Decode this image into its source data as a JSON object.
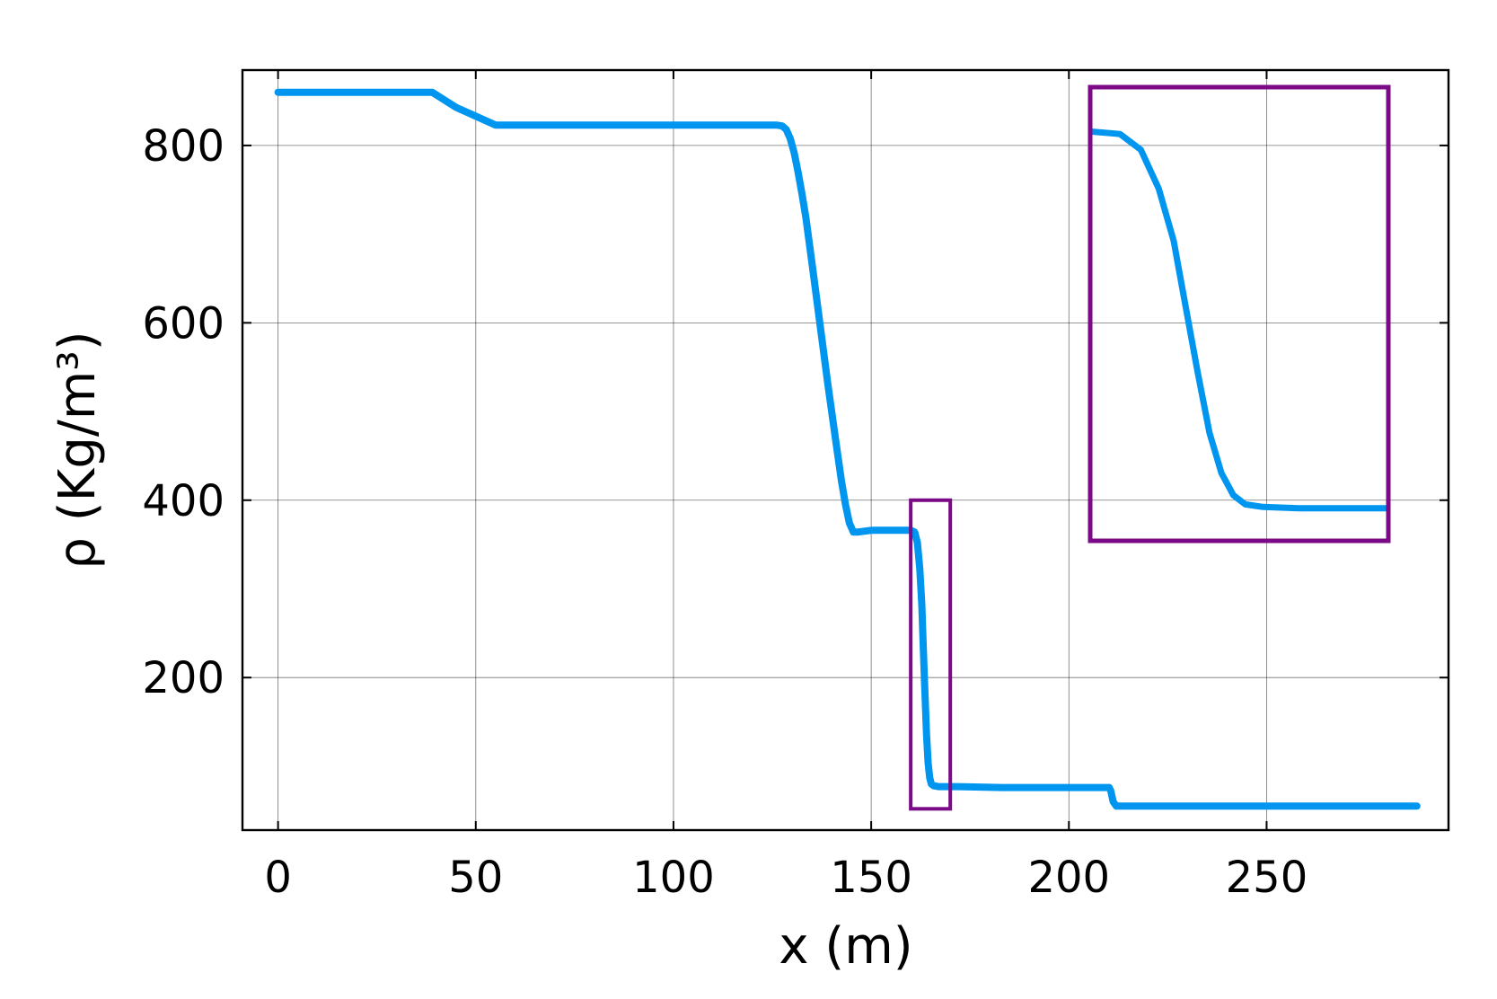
{
  "chart_data": {
    "type": "line",
    "xlabel": "x (m)",
    "ylabel": "ρ (Kg/m³)",
    "xlim": [
      -9,
      296
    ],
    "ylim": [
      28,
      885
    ],
    "xticks": [
      0,
      50,
      100,
      150,
      200,
      250
    ],
    "yticks": [
      200,
      400,
      600,
      800
    ],
    "xtick_labels": [
      "0",
      "50",
      "100",
      "150",
      "200",
      "250"
    ],
    "ytick_labels": [
      "200",
      "400",
      "600",
      "800"
    ],
    "grid": true,
    "colors": {
      "line": "#0096f0",
      "highlight": "#7a0a86",
      "grid": "#000000"
    },
    "series": [
      {
        "x": [
          0,
          39,
          45,
          51,
          55,
          60,
          80,
          100,
          120,
          126,
          127.5,
          128.5,
          129.5,
          130.5,
          131.5,
          132.5,
          133.5,
          135,
          137,
          139,
          141,
          142.5,
          143.5,
          144.5,
          145.5,
          146.5,
          150,
          155,
          160,
          161,
          161.7,
          162.3,
          162.8,
          163.2,
          163.6,
          164,
          164.4,
          164.8,
          165.2,
          165.8,
          167,
          172,
          183,
          200,
          210.2,
          210.6,
          211.2,
          212,
          230,
          260,
          288
        ],
        "y": [
          860,
          860,
          843,
          831,
          823,
          823,
          823,
          823,
          823,
          823,
          822,
          818,
          808,
          792,
          770,
          745,
          718,
          668,
          600,
          532,
          468,
          421,
          395,
          374,
          364,
          364,
          366,
          366,
          366,
          364,
          352,
          322,
          282,
          232,
          182,
          135,
          104,
          87,
          80,
          78,
          77,
          77,
          76,
          76,
          76,
          72,
          60,
          55,
          55,
          55,
          55
        ]
      }
    ],
    "highlight_region": {
      "x": [
        160,
        170
      ],
      "y": [
        52,
        400
      ]
    },
    "inset_zoom": {
      "x": [
        160,
        170
      ],
      "y": [
        52,
        400
      ]
    }
  }
}
